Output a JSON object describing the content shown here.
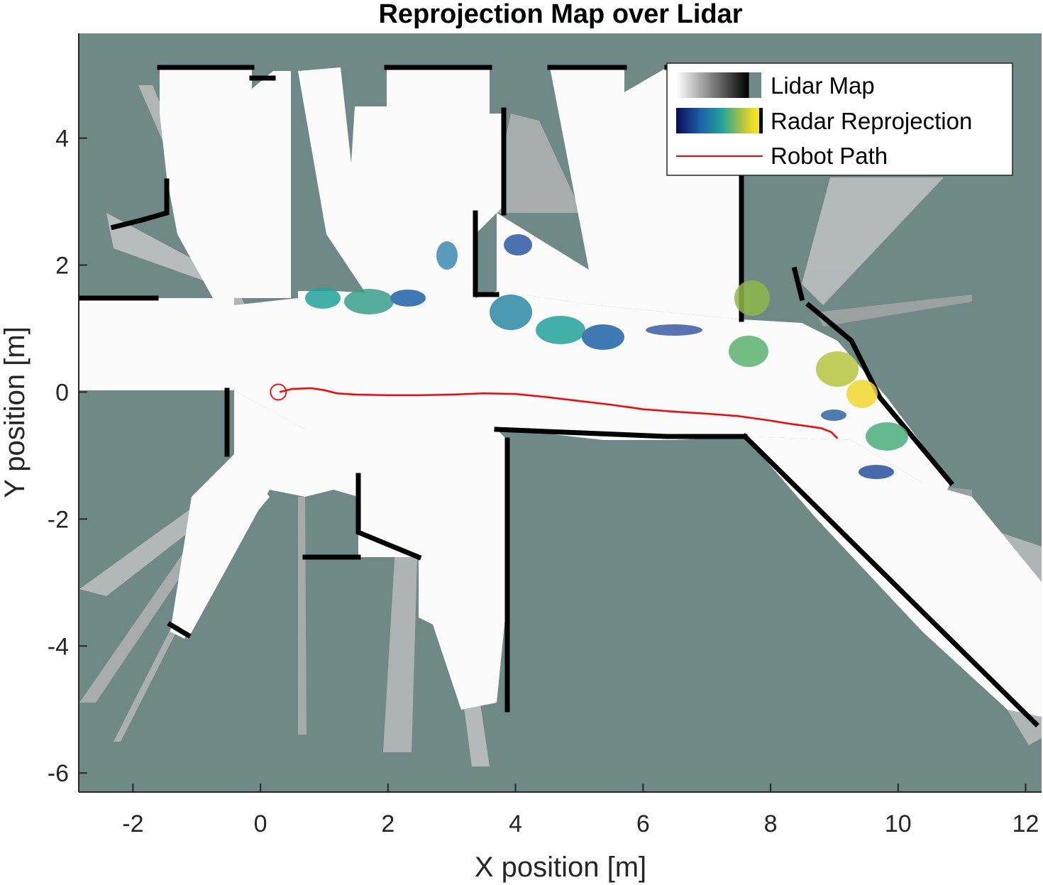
{
  "chart_data": {
    "type": "heatmap",
    "title": "Reprojection Map over Lidar",
    "xlabel": "X position [m]",
    "ylabel": "Y position [m]",
    "xlim": [
      -2.85,
      12.25
    ],
    "ylim": [
      -6.3,
      5.65
    ],
    "xticks": [
      -2,
      0,
      2,
      4,
      6,
      8,
      10,
      12
    ],
    "yticks": [
      -6,
      -4,
      -2,
      0,
      2,
      4
    ],
    "grid": false,
    "legend_position": "top-right",
    "legend": [
      {
        "label": "Lidar Map",
        "swatch": "lidar-gradient"
      },
      {
        "label": "Radar Reprojection",
        "swatch": "parula-gradient"
      },
      {
        "label": "Robot Path",
        "swatch": "line",
        "color": "#ff0000"
      }
    ],
    "colors": {
      "background_unknown": "#6f8a86",
      "free_space": "#fbfbfc",
      "occupied": "#000000",
      "robot_path": "#ff0000"
    },
    "robot_start": {
      "x": 0.28,
      "y": 0.0
    },
    "robot_path": {
      "x": [
        0.3,
        0.5,
        0.8,
        1.0,
        1.2,
        1.5,
        2.0,
        2.5,
        3.0,
        3.5,
        4.0,
        4.5,
        5.0,
        5.5,
        6.0,
        6.5,
        7.0,
        7.5,
        8.0,
        8.3,
        8.6,
        8.8,
        8.95,
        9.05
      ],
      "y": [
        0.0,
        0.05,
        0.06,
        0.03,
        -0.02,
        -0.04,
        -0.05,
        -0.05,
        -0.04,
        -0.02,
        -0.03,
        -0.08,
        -0.14,
        -0.2,
        -0.27,
        -0.31,
        -0.34,
        -0.38,
        -0.45,
        -0.5,
        -0.54,
        -0.57,
        -0.63,
        -0.73
      ]
    }
  }
}
